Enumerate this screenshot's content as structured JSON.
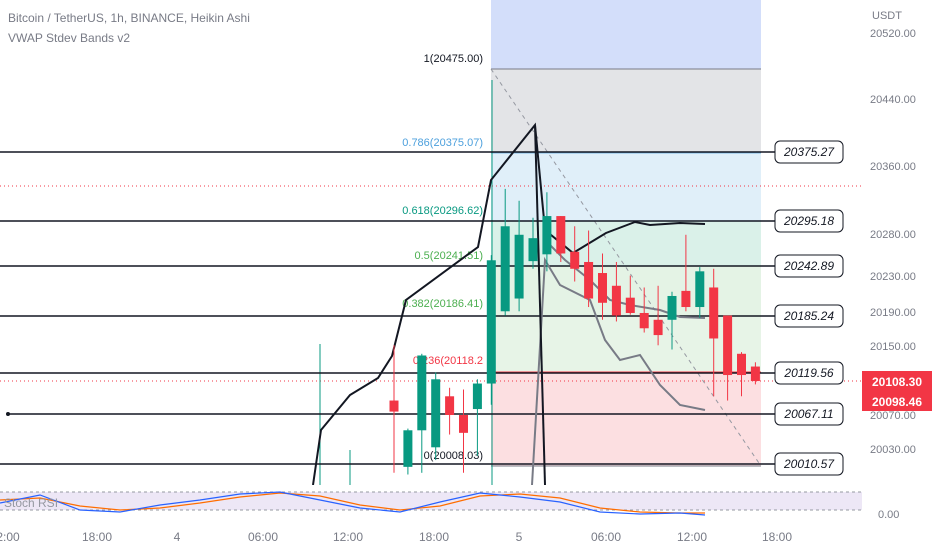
{
  "header": {
    "symbol_line": "Bitcoin / TetherUS, 1h, BINANCE, Heikin Ashi",
    "indicator_line": "VWAP Stdev Bands v2"
  },
  "price_axis": {
    "currency": "USDT",
    "ticks": [
      "20520.00",
      "20440.00",
      "20360.00",
      "20280.00",
      "20230.00",
      "20190.00",
      "20150.00",
      "20070.00",
      "20030.00"
    ],
    "last_price": "20108.30",
    "prev_price": "20098.46",
    "last_price_color": "#f23645"
  },
  "time_axis": {
    "ticks": [
      "2:00",
      "18:00",
      "4",
      "06:00",
      "12:00",
      "18:00",
      "5",
      "06:00",
      "12:00",
      "18:00"
    ]
  },
  "fib_levels": [
    {
      "label": "1(20475.00)",
      "color": "#131722"
    },
    {
      "label": "0.786(20375.07)",
      "color": "#4da0dd"
    },
    {
      "label": "0.618(20296.62)",
      "color": "#089981"
    },
    {
      "label": "0.5(20241.51)",
      "color": "#4caf50"
    },
    {
      "label": "0.382(20186.41)",
      "color": "#4caf50"
    },
    {
      "label": "0.236(20118.2",
      "color": "#f23645"
    },
    {
      "label": "0(20008.03)",
      "color": "#131722"
    }
  ],
  "line_labels": [
    "20375.27",
    "20295.18",
    "20242.89",
    "20185.24",
    "20119.56",
    "20067.11",
    "20010.57"
  ],
  "oscillator": {
    "name": "Stoch RSI",
    "axis_label": "0.00",
    "k_color": "#2962ff",
    "d_color": "#ff6d00"
  },
  "colors": {
    "up": "#089981",
    "down": "#f23645",
    "vwap": "#131722",
    "band": "#787b86"
  },
  "chart_data": {
    "type": "candlestick",
    "title": "Bitcoin / TetherUS, 1h, BINANCE, Heikin Ashi",
    "ylabel": "USDT",
    "ylim": [
      20000,
      20520
    ],
    "candles": [
      {
        "open": 20072,
        "high": 20150,
        "low": 20000,
        "close": 20085,
        "dir": "down"
      },
      {
        "open": 20007,
        "high": 20052,
        "low": 19998,
        "close": 20050,
        "dir": "up"
      },
      {
        "open": 20050,
        "high": 20140,
        "low": 20000,
        "close": 20138,
        "dir": "up"
      },
      {
        "open": 20030,
        "high": 20118,
        "low": 20015,
        "close": 20110,
        "dir": "up"
      },
      {
        "open": 20090,
        "high": 20100,
        "low": 20045,
        "close": 20068,
        "dir": "down"
      },
      {
        "open": 20068,
        "high": 20098,
        "low": 20000,
        "close": 20047,
        "dir": "down"
      },
      {
        "open": 20075,
        "high": 20110,
        "low": 20020,
        "close": 20105,
        "dir": "up"
      },
      {
        "open": 20105,
        "high": 20256,
        "low": 20080,
        "close": 20250,
        "dir": "up"
      },
      {
        "open": 20190,
        "high": 20334,
        "low": 20185,
        "close": 20290,
        "dir": "up"
      },
      {
        "open": 20205,
        "high": 20320,
        "low": 20190,
        "close": 20280,
        "dir": "up"
      },
      {
        "open": 20249,
        "high": 20300,
        "low": 20240,
        "close": 20276,
        "dir": "up"
      },
      {
        "open": 20257,
        "high": 20330,
        "low": 20237,
        "close": 20302,
        "dir": "up"
      },
      {
        "open": 20302,
        "high": 20302,
        "low": 20248,
        "close": 20258,
        "dir": "down"
      },
      {
        "open": 20260,
        "high": 20290,
        "low": 20225,
        "close": 20240,
        "dir": "down"
      },
      {
        "open": 20248,
        "high": 20285,
        "low": 20195,
        "close": 20205,
        "dir": "down"
      },
      {
        "open": 20235,
        "high": 20258,
        "low": 20180,
        "close": 20200,
        "dir": "down"
      },
      {
        "open": 20220,
        "high": 20248,
        "low": 20178,
        "close": 20185,
        "dir": "down"
      },
      {
        "open": 20206,
        "high": 20232,
        "low": 20186,
        "close": 20188,
        "dir": "down"
      },
      {
        "open": 20188,
        "high": 20218,
        "low": 20165,
        "close": 20170,
        "dir": "down"
      },
      {
        "open": 20180,
        "high": 20220,
        "low": 20150,
        "close": 20162,
        "dir": "down"
      },
      {
        "open": 20180,
        "high": 20213,
        "low": 20145,
        "close": 20208,
        "dir": "up"
      },
      {
        "open": 20214,
        "high": 20280,
        "low": 20190,
        "close": 20195,
        "dir": "down"
      },
      {
        "open": 20195,
        "high": 20242,
        "low": 20182,
        "close": 20237,
        "dir": "up"
      },
      {
        "open": 20218,
        "high": 20240,
        "low": 20090,
        "close": 20158,
        "dir": "down"
      },
      {
        "open": 20185,
        "high": 20185,
        "low": 20085,
        "close": 20115,
        "dir": "down"
      },
      {
        "open": 20140,
        "high": 20142,
        "low": 20090,
        "close": 20115,
        "dir": "down"
      },
      {
        "open": 20125,
        "high": 20130,
        "low": 20104,
        "close": 20108,
        "dir": "down"
      }
    ]
  }
}
